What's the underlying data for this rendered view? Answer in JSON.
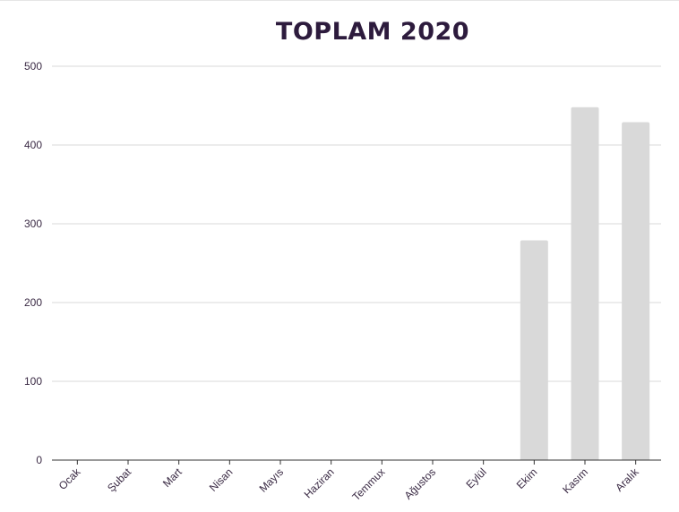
{
  "chart_data": {
    "type": "bar",
    "title": "TOPLAM 2020",
    "xlabel": "",
    "ylabel": "",
    "categories": [
      "Ocak",
      "Şubat",
      "Mart",
      "Nisan",
      "Mayıs",
      "Haziran",
      "Temmux",
      "Ağustos",
      "Eylül",
      "Ekim",
      "Kasım",
      "Aralık"
    ],
    "values": [
      0,
      0,
      0,
      0,
      0,
      0,
      0,
      0,
      0,
      279,
      448,
      429
    ],
    "ylim": [
      0,
      500
    ],
    "yticks": [
      "0",
      "100",
      "200",
      "300",
      "400",
      "500"
    ],
    "grid": true,
    "legend": "none"
  },
  "colors": {
    "bar": "#d9d9d9",
    "title": "#2d1b3d",
    "grid": "#d9d9d9",
    "axis": "#333333",
    "text": "#3a2a44"
  }
}
